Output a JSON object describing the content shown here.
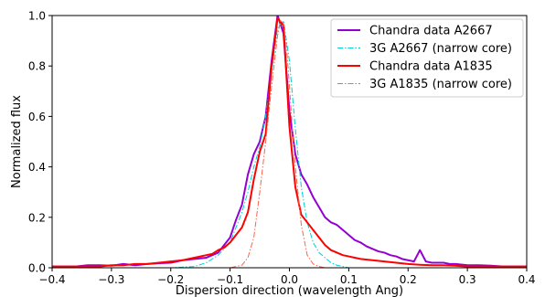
{
  "chart_data": {
    "type": "line",
    "title": "",
    "xlabel": "Dispersion direction (wavelength Ang)",
    "ylabel": "Normalized flux",
    "xlim": [
      -0.4,
      0.4
    ],
    "ylim": [
      0.0,
      1.0
    ],
    "xticks": [
      -0.4,
      -0.3,
      -0.2,
      -0.1,
      0.0,
      0.1,
      0.2,
      0.3,
      0.4
    ],
    "yticks": [
      0.0,
      0.2,
      0.4,
      0.6,
      0.8,
      1.0
    ],
    "xtick_labels": [
      "−0.4",
      "−0.3",
      "−0.2",
      "−0.1",
      "0.0",
      "0.1",
      "0.2",
      "0.3",
      "0.4"
    ],
    "ytick_labels": [
      "0.0",
      "0.2",
      "0.4",
      "0.6",
      "0.8",
      "1.0"
    ],
    "grid": false,
    "legend_position": "top-right",
    "series": [
      {
        "name": "Chandra data A2667",
        "color": "#9400d3",
        "style": "solid",
        "x": [
          -0.4,
          -0.38,
          -0.36,
          -0.34,
          -0.32,
          -0.3,
          -0.28,
          -0.26,
          -0.24,
          -0.22,
          -0.2,
          -0.18,
          -0.16,
          -0.14,
          -0.13,
          -0.12,
          -0.11,
          -0.1,
          -0.09,
          -0.08,
          -0.07,
          -0.06,
          -0.05,
          -0.04,
          -0.03,
          -0.02,
          -0.01,
          0.0,
          0.01,
          0.02,
          0.03,
          0.04,
          0.05,
          0.06,
          0.07,
          0.08,
          0.09,
          0.1,
          0.11,
          0.12,
          0.13,
          0.14,
          0.15,
          0.16,
          0.17,
          0.18,
          0.19,
          0.2,
          0.21,
          0.22,
          0.23,
          0.24,
          0.25,
          0.26,
          0.27,
          0.28,
          0.3,
          0.32,
          0.34,
          0.36,
          0.38,
          0.4
        ],
        "y": [
          0.005,
          0.005,
          0.005,
          0.01,
          0.01,
          0.008,
          0.015,
          0.01,
          0.015,
          0.018,
          0.02,
          0.03,
          0.035,
          0.04,
          0.05,
          0.06,
          0.09,
          0.12,
          0.19,
          0.25,
          0.37,
          0.45,
          0.5,
          0.6,
          0.82,
          1.0,
          0.93,
          0.62,
          0.45,
          0.37,
          0.33,
          0.28,
          0.24,
          0.2,
          0.18,
          0.17,
          0.15,
          0.13,
          0.11,
          0.1,
          0.085,
          0.075,
          0.065,
          0.06,
          0.05,
          0.045,
          0.035,
          0.03,
          0.025,
          0.07,
          0.025,
          0.02,
          0.02,
          0.02,
          0.015,
          0.015,
          0.01,
          0.01,
          0.008,
          0.005,
          0.005,
          0.005
        ]
      },
      {
        "name": "3G A2667 (narrow core)",
        "color": "#00ced1",
        "style": "dashdot",
        "x": [
          -0.4,
          -0.2,
          -0.16,
          -0.14,
          -0.12,
          -0.1,
          -0.09,
          -0.08,
          -0.07,
          -0.06,
          -0.05,
          -0.04,
          -0.03,
          -0.02,
          -0.01,
          0.0,
          0.01,
          0.02,
          0.03,
          0.04,
          0.05,
          0.06,
          0.07,
          0.08,
          0.1,
          0.12,
          0.4
        ],
        "y": [
          0.0,
          0.0,
          0.005,
          0.02,
          0.05,
          0.1,
          0.16,
          0.22,
          0.3,
          0.4,
          0.48,
          0.6,
          0.78,
          0.95,
          0.98,
          0.82,
          0.55,
          0.32,
          0.18,
          0.1,
          0.06,
          0.04,
          0.02,
          0.01,
          0.0,
          0.0,
          0.0
        ]
      },
      {
        "name": "Chandra data A1835",
        "color": "#ff0000",
        "style": "solid",
        "x": [
          -0.4,
          -0.38,
          -0.36,
          -0.34,
          -0.32,
          -0.3,
          -0.28,
          -0.26,
          -0.24,
          -0.22,
          -0.2,
          -0.18,
          -0.16,
          -0.14,
          -0.13,
          -0.12,
          -0.11,
          -0.1,
          -0.09,
          -0.08,
          -0.07,
          -0.06,
          -0.05,
          -0.04,
          -0.03,
          -0.02,
          -0.01,
          0.0,
          0.01,
          0.02,
          0.03,
          0.04,
          0.05,
          0.06,
          0.07,
          0.08,
          0.09,
          0.1,
          0.11,
          0.12,
          0.14,
          0.16,
          0.18,
          0.2,
          0.22,
          0.24,
          0.26,
          0.28,
          0.3,
          0.32,
          0.34,
          0.36,
          0.38,
          0.4
        ],
        "y": [
          0.005,
          0.005,
          0.005,
          0.005,
          0.005,
          0.01,
          0.01,
          0.015,
          0.015,
          0.02,
          0.025,
          0.03,
          0.04,
          0.05,
          0.055,
          0.07,
          0.08,
          0.1,
          0.13,
          0.16,
          0.22,
          0.35,
          0.46,
          0.53,
          0.8,
          0.99,
          0.96,
          0.56,
          0.32,
          0.21,
          0.18,
          0.15,
          0.12,
          0.09,
          0.07,
          0.06,
          0.05,
          0.045,
          0.04,
          0.035,
          0.03,
          0.025,
          0.02,
          0.015,
          0.012,
          0.01,
          0.01,
          0.008,
          0.005,
          0.005,
          0.005,
          0.005,
          0.005,
          0.005
        ]
      },
      {
        "name": "3G A1835 (narrow core)",
        "color": "#ff6347",
        "style": "dashdot",
        "x": [
          -0.4,
          -0.1,
          -0.08,
          -0.07,
          -0.06,
          -0.05,
          -0.04,
          -0.03,
          -0.02,
          -0.015,
          -0.01,
          -0.005,
          0.0,
          0.005,
          0.01,
          0.02,
          0.03,
          0.04,
          0.05,
          0.06,
          0.4
        ],
        "y": [
          0.0,
          0.0,
          0.01,
          0.04,
          0.12,
          0.3,
          0.5,
          0.72,
          0.92,
          0.98,
          0.97,
          0.88,
          0.72,
          0.55,
          0.4,
          0.17,
          0.05,
          0.015,
          0.005,
          0.0,
          0.0
        ]
      }
    ]
  }
}
